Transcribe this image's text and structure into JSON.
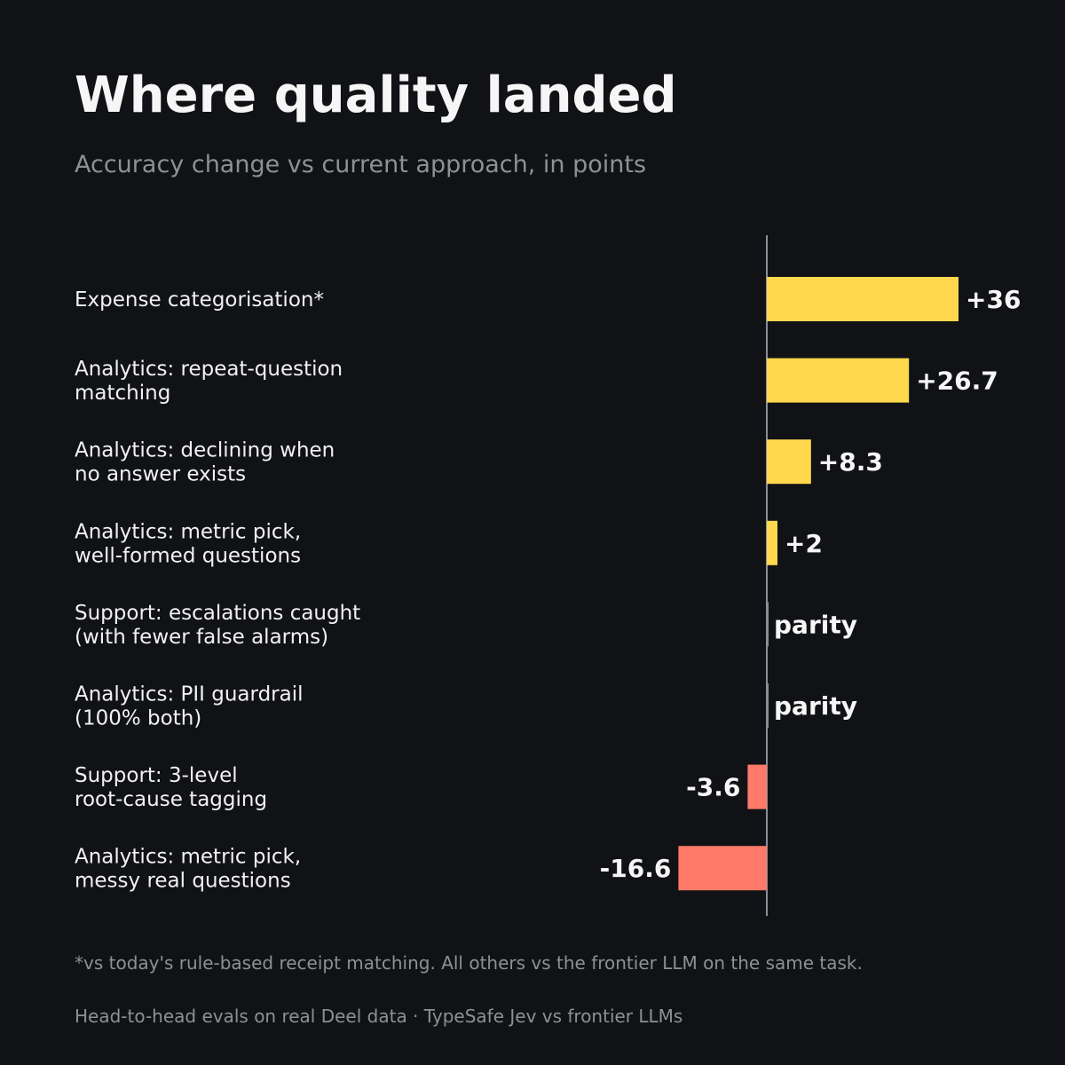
{
  "title": "Where quality landed",
  "subtitle": "Accuracy change vs current approach, in points",
  "footnote": "*vs today's rule-based receipt matching. All others vs the frontier LLM on the same task.",
  "source": "Head-to-head evals on real Deel data  ·  TypeSafe Jev vs frontier LLMs",
  "colors": {
    "background": "#111215",
    "positive": "#ffd84d",
    "negative": "#ff7a68",
    "parity": "#8a8e98",
    "axis": "#8a8e98",
    "text": "#f4f4f4",
    "muted": "#8e9095"
  },
  "chart_data": {
    "type": "bar",
    "orientation": "horizontal",
    "title": "Where quality landed",
    "subtitle": "Accuracy change vs current approach, in points",
    "xlabel": "",
    "ylabel": "",
    "xlim": [
      -16.6,
      36
    ],
    "grid": false,
    "categories": [
      [
        "Expense categorisation*"
      ],
      [
        "Analytics: repeat-question",
        "matching"
      ],
      [
        "Analytics: declining when",
        "no answer exists"
      ],
      [
        "Analytics: metric pick,",
        "well-formed questions"
      ],
      [
        "Support: escalations caught",
        "(with fewer false alarms)"
      ],
      [
        "Analytics: PII guardrail",
        "(100% both)"
      ],
      [
        "Support: 3-level",
        "root-cause tagging"
      ],
      [
        "Analytics: metric pick,",
        "messy real questions"
      ]
    ],
    "values": [
      36,
      26.7,
      8.3,
      2,
      0,
      0,
      -3.6,
      -16.6
    ],
    "value_labels": [
      "+36",
      "+26.7",
      "+8.3",
      "+2",
      "parity",
      "parity",
      "-3.6",
      "-16.6"
    ]
  }
}
